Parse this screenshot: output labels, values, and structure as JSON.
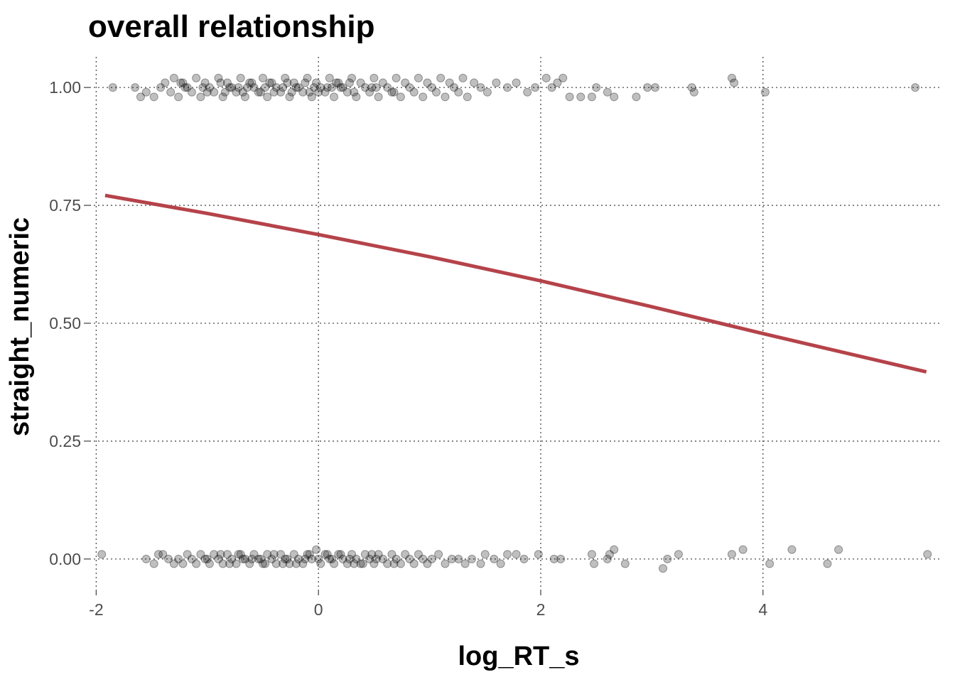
{
  "chart_data": {
    "type": "scatter",
    "title": "overall relationship",
    "xlabel": "log_RT_s",
    "ylabel": "straight_numeric",
    "xlim": [
      -2.06,
      5.6
    ],
    "ylim": [
      -0.065,
      1.065
    ],
    "x_ticks": [
      -2,
      0,
      2,
      4
    ],
    "x_tick_labels": [
      "-2",
      "0",
      "2",
      "4"
    ],
    "y_ticks": [
      0,
      0.25,
      0.5,
      0.75,
      1.0
    ],
    "y_tick_labels": [
      "0.00",
      "0.25",
      "0.50",
      "0.75",
      "1.00"
    ],
    "grid": true,
    "grid_style": "dotted",
    "point_color": "#000000",
    "point_alpha": 0.25,
    "jitter": true,
    "points_at_1": [
      [
        -1.85,
        1.0
      ],
      [
        -1.65,
        1.0
      ],
      [
        -1.6,
        0.98
      ],
      [
        -1.55,
        0.99
      ],
      [
        -1.48,
        0.98
      ],
      [
        -1.42,
        1.0
      ],
      [
        -1.38,
        1.01
      ],
      [
        -1.33,
        0.99
      ],
      [
        -1.3,
        1.02
      ],
      [
        -1.26,
        0.98
      ],
      [
        -1.22,
        1.01
      ],
      [
        -1.18,
        1.0
      ],
      [
        -1.14,
        0.99
      ],
      [
        -1.1,
        1.02
      ],
      [
        -1.06,
        0.98
      ],
      [
        -1.02,
        1.01
      ],
      [
        -0.98,
        1.0
      ],
      [
        -0.94,
        0.99
      ],
      [
        -0.9,
        1.02
      ],
      [
        -0.86,
        0.98
      ],
      [
        -0.82,
        1.01
      ],
      [
        -0.78,
        1.0
      ],
      [
        -0.74,
        0.99
      ],
      [
        -0.7,
        1.02
      ],
      [
        -0.66,
        0.98
      ],
      [
        -0.62,
        1.01
      ],
      [
        -0.58,
        1.0
      ],
      [
        -0.54,
        0.99
      ],
      [
        -0.5,
        1.02
      ],
      [
        -0.46,
        0.98
      ],
      [
        -0.42,
        1.01
      ],
      [
        -0.38,
        1.0
      ],
      [
        -0.34,
        0.99
      ],
      [
        -0.3,
        1.02
      ],
      [
        -0.26,
        0.98
      ],
      [
        -0.22,
        1.01
      ],
      [
        -0.18,
        1.0
      ],
      [
        -0.14,
        0.99
      ],
      [
        -0.1,
        1.02
      ],
      [
        -0.06,
        0.98
      ],
      [
        -0.02,
        1.01
      ],
      [
        0.02,
        1.0
      ],
      [
        0.06,
        0.99
      ],
      [
        0.1,
        1.02
      ],
      [
        0.14,
        0.98
      ],
      [
        0.18,
        1.01
      ],
      [
        0.22,
        1.0
      ],
      [
        0.26,
        0.99
      ],
      [
        0.3,
        1.02
      ],
      [
        0.34,
        0.98
      ],
      [
        0.38,
        1.01
      ],
      [
        0.42,
        1.0
      ],
      [
        0.46,
        0.99
      ],
      [
        0.5,
        1.02
      ],
      [
        0.54,
        0.98
      ],
      [
        0.58,
        1.01
      ],
      [
        0.62,
        1.0
      ],
      [
        0.66,
        0.99
      ],
      [
        0.7,
        1.02
      ],
      [
        0.74,
        0.98
      ],
      [
        0.78,
        1.01
      ],
      [
        0.82,
        1.0
      ],
      [
        0.86,
        0.99
      ],
      [
        0.9,
        1.02
      ],
      [
        0.94,
        0.98
      ],
      [
        0.98,
        1.01
      ],
      [
        1.02,
        1.0
      ],
      [
        1.06,
        0.99
      ],
      [
        1.1,
        1.02
      ],
      [
        1.14,
        0.98
      ],
      [
        1.18,
        1.01
      ],
      [
        1.22,
        1.0
      ],
      [
        1.26,
        0.99
      ],
      [
        1.3,
        1.02
      ],
      [
        1.34,
        0.98
      ],
      [
        1.4,
        1.01
      ],
      [
        1.46,
        1.0
      ],
      [
        1.52,
        0.99
      ],
      [
        1.6,
        1.01
      ],
      [
        1.7,
        1.0
      ],
      [
        1.78,
        1.01
      ],
      [
        1.88,
        0.99
      ],
      [
        1.95,
        1.0
      ],
      [
        2.05,
        1.02
      ],
      [
        2.1,
        1.0
      ],
      [
        2.15,
        1.01
      ],
      [
        2.2,
        1.02
      ],
      [
        2.26,
        0.98
      ],
      [
        2.36,
        0.98
      ],
      [
        2.46,
        0.98
      ],
      [
        2.5,
        1.0
      ],
      [
        2.6,
        0.99
      ],
      [
        2.66,
        0.98
      ],
      [
        2.86,
        0.98
      ],
      [
        2.96,
        1.0
      ],
      [
        3.03,
        1.0
      ],
      [
        3.36,
        1.0
      ],
      [
        3.38,
        0.99
      ],
      [
        3.72,
        1.02
      ],
      [
        3.74,
        1.01
      ],
      [
        4.02,
        0.99
      ],
      [
        5.37,
        1.0
      ],
      [
        -1.2,
        1.0
      ],
      [
        -1.0,
        0.99
      ],
      [
        -0.8,
        1.0
      ],
      [
        -0.6,
        1.01
      ],
      [
        -0.4,
        0.99
      ],
      [
        -0.2,
        1.0
      ],
      [
        0.0,
        0.99
      ],
      [
        0.2,
        1.0
      ],
      [
        -1.24,
        1.01
      ],
      [
        -1.04,
        1.0
      ],
      [
        -0.84,
        0.99
      ],
      [
        -0.64,
        1.0
      ],
      [
        -0.44,
        1.01
      ],
      [
        -0.24,
        0.99
      ],
      [
        -0.04,
        1.0
      ],
      [
        0.16,
        1.01
      ],
      [
        -0.88,
        1.01
      ],
      [
        -0.68,
        0.99
      ],
      [
        -0.48,
        1.0
      ],
      [
        -0.28,
        1.01
      ],
      [
        -0.08,
        0.99
      ],
      [
        0.12,
        1.0
      ],
      [
        0.32,
        0.99
      ],
      [
        0.52,
        1.0
      ],
      [
        -0.72,
        1.0
      ],
      [
        -0.52,
        0.99
      ],
      [
        -0.32,
        1.0
      ],
      [
        -0.12,
        1.01
      ],
      [
        0.08,
        1.0
      ],
      [
        0.28,
        1.01
      ],
      [
        0.48,
        1.0
      ],
      [
        0.68,
        0.99
      ]
    ],
    "points_at_0": [
      [
        -1.95,
        0.01
      ],
      [
        -1.55,
        0.0
      ],
      [
        -1.48,
        -0.01
      ],
      [
        -1.44,
        0.01
      ],
      [
        -1.4,
        0.01
      ],
      [
        -1.35,
        0.0
      ],
      [
        -1.3,
        -0.01
      ],
      [
        -1.26,
        0.0
      ],
      [
        -1.22,
        -0.01
      ],
      [
        -1.18,
        0.01
      ],
      [
        -1.14,
        0.0
      ],
      [
        -1.1,
        -0.01
      ],
      [
        -1.06,
        0.01
      ],
      [
        -1.02,
        0.0
      ],
      [
        -0.98,
        -0.01
      ],
      [
        -0.94,
        0.01
      ],
      [
        -0.9,
        0.0
      ],
      [
        -0.86,
        -0.01
      ],
      [
        -0.82,
        0.01
      ],
      [
        -0.78,
        0.0
      ],
      [
        -0.74,
        -0.01
      ],
      [
        -0.7,
        0.01
      ],
      [
        -0.66,
        0.0
      ],
      [
        -0.62,
        -0.01
      ],
      [
        -0.58,
        0.01
      ],
      [
        -0.54,
        0.0
      ],
      [
        -0.5,
        -0.01
      ],
      [
        -0.46,
        0.01
      ],
      [
        -0.42,
        0.0
      ],
      [
        -0.38,
        -0.01
      ],
      [
        -0.34,
        0.01
      ],
      [
        -0.3,
        0.0
      ],
      [
        -0.26,
        -0.01
      ],
      [
        -0.22,
        0.01
      ],
      [
        -0.18,
        0.0
      ],
      [
        -0.14,
        -0.01
      ],
      [
        -0.1,
        0.01
      ],
      [
        -0.06,
        0.0
      ],
      [
        -0.02,
        0.02
      ],
      [
        0.02,
        -0.01
      ],
      [
        0.06,
        0.01
      ],
      [
        0.1,
        0.0
      ],
      [
        0.14,
        -0.01
      ],
      [
        0.18,
        0.01
      ],
      [
        0.22,
        0.0
      ],
      [
        0.26,
        -0.01
      ],
      [
        0.3,
        0.01
      ],
      [
        0.34,
        0.0
      ],
      [
        0.38,
        -0.01
      ],
      [
        0.42,
        0.01
      ],
      [
        0.46,
        0.0
      ],
      [
        0.5,
        -0.01
      ],
      [
        0.54,
        0.01
      ],
      [
        0.58,
        0.0
      ],
      [
        0.62,
        -0.01
      ],
      [
        0.66,
        0.01
      ],
      [
        0.7,
        0.0
      ],
      [
        0.74,
        -0.01
      ],
      [
        0.78,
        0.01
      ],
      [
        0.82,
        0.0
      ],
      [
        0.86,
        -0.01
      ],
      [
        0.9,
        0.01
      ],
      [
        0.94,
        0.0
      ],
      [
        0.98,
        -0.01
      ],
      [
        1.02,
        0.0
      ],
      [
        1.08,
        0.01
      ],
      [
        1.14,
        -0.01
      ],
      [
        1.2,
        0.0
      ],
      [
        1.26,
        0.0
      ],
      [
        1.32,
        -0.01
      ],
      [
        1.38,
        0.0
      ],
      [
        1.46,
        -0.01
      ],
      [
        1.5,
        0.01
      ],
      [
        1.58,
        0.0
      ],
      [
        1.64,
        -0.01
      ],
      [
        1.7,
        0.01
      ],
      [
        1.78,
        0.01
      ],
      [
        1.85,
        0.0
      ],
      [
        1.98,
        0.01
      ],
      [
        2.12,
        0.0
      ],
      [
        2.18,
        0.0
      ],
      [
        2.46,
        0.01
      ],
      [
        2.48,
        -0.01
      ],
      [
        2.6,
        0.0
      ],
      [
        2.62,
        0.01
      ],
      [
        2.66,
        0.02
      ],
      [
        2.76,
        -0.01
      ],
      [
        3.1,
        -0.02
      ],
      [
        3.14,
        0.0
      ],
      [
        3.24,
        0.01
      ],
      [
        3.72,
        0.01
      ],
      [
        3.82,
        0.02
      ],
      [
        4.06,
        -0.01
      ],
      [
        4.26,
        0.02
      ],
      [
        4.58,
        -0.01
      ],
      [
        4.68,
        0.02
      ],
      [
        5.48,
        0.01
      ],
      [
        -1.0,
        0.0
      ],
      [
        -0.8,
        -0.01
      ],
      [
        -0.6,
        0.0
      ],
      [
        -0.4,
        0.01
      ],
      [
        -0.2,
        -0.01
      ],
      [
        0.0,
        0.0
      ],
      [
        0.2,
        0.01
      ],
      [
        0.4,
        -0.01
      ],
      [
        -0.88,
        0.01
      ],
      [
        -0.68,
        0.0
      ],
      [
        -0.48,
        -0.01
      ],
      [
        -0.28,
        0.0
      ],
      [
        -0.08,
        0.01
      ],
      [
        0.12,
        0.0
      ],
      [
        0.32,
        -0.01
      ],
      [
        0.52,
        0.0
      ],
      [
        -0.72,
        0.01
      ],
      [
        -0.52,
        0.0
      ],
      [
        -0.32,
        -0.01
      ],
      [
        -0.12,
        0.0
      ],
      [
        0.08,
        0.01
      ],
      [
        0.28,
        0.0
      ],
      [
        0.48,
        0.01
      ],
      [
        0.68,
        -0.01
      ]
    ],
    "fit_line": {
      "color": "#b5434a",
      "x": [
        -1.92,
        -1.0,
        0.0,
        1.0,
        2.0,
        3.0,
        4.0,
        5.47
      ],
      "y": [
        0.771,
        0.733,
        0.688,
        0.641,
        0.59,
        0.535,
        0.478,
        0.397
      ]
    }
  }
}
